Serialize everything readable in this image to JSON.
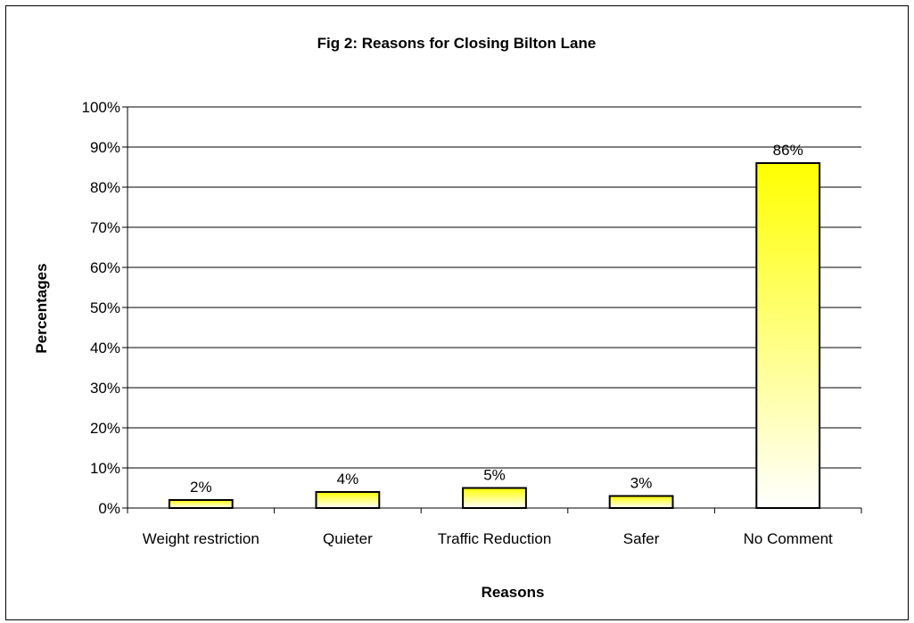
{
  "chart_data": {
    "type": "bar",
    "title": "Fig 2: Reasons for Closing Bilton Lane",
    "xlabel": "Reasons",
    "ylabel": "Percentages",
    "categories": [
      "Weight restriction",
      "Quieter",
      "Traffic Reduction",
      "Safer",
      "No Comment"
    ],
    "values": [
      2,
      4,
      5,
      3,
      86
    ],
    "value_labels": [
      "2%",
      "4%",
      "5%",
      "3%",
      "86%"
    ],
    "ylim": [
      0,
      100
    ],
    "y_ticks": [
      0,
      10,
      20,
      30,
      40,
      50,
      60,
      70,
      80,
      90,
      100
    ],
    "y_tick_labels": [
      "0%",
      "10%",
      "20%",
      "30%",
      "40%",
      "50%",
      "60%",
      "70%",
      "80%",
      "90%",
      "100%"
    ],
    "grid": true,
    "legend": "none",
    "bar_fill_top": "#ffff00",
    "bar_fill_bottom": "#ffffff",
    "bar_stroke": "#000000",
    "gridline_color": "#000000"
  }
}
